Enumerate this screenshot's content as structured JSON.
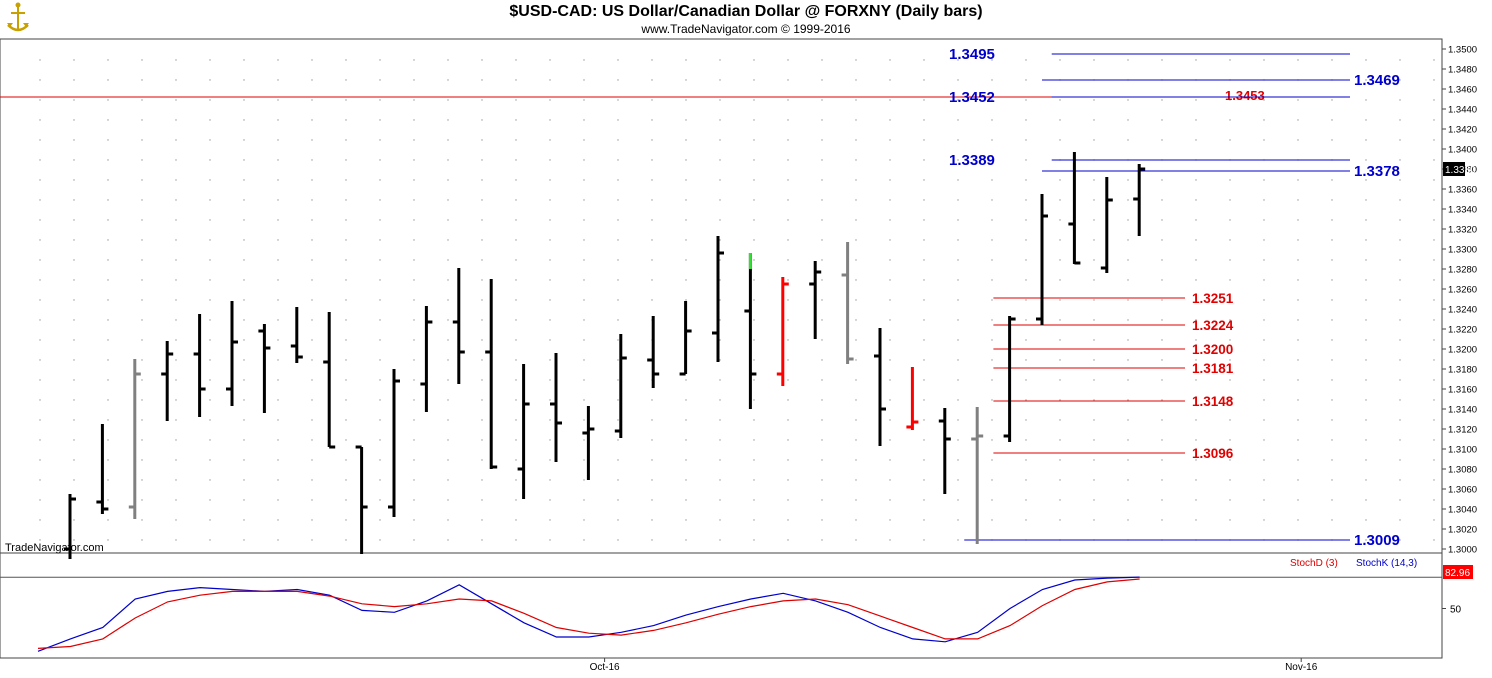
{
  "header": {
    "title": "$USD-CAD:  US Dollar/Canadian Dollar @ FORXNY  (Daily bars)",
    "subtitle": "www.TradeNavigator.com © 1999-2016",
    "watermark": "TradeNavigator.com"
  },
  "colors": {
    "up_bar": "#000000",
    "neutral_bar": "#808080",
    "down_bar": "#ff0000",
    "highlight_bar": "#33dd33",
    "support_line": "#e00000",
    "resistance_line": "#0000cc",
    "stoch_d": "#dd0000",
    "stoch_k": "#0000cc"
  },
  "chart_data": [
    {
      "type": "ohlc",
      "title": "$USD-CAD:  US Dollar/Canadian Dollar @ FORXNY  (Daily bars)",
      "ylim": [
        1.299,
        1.351
      ],
      "y_ticks": [
        "1.3500",
        "1.3480",
        "1.3460",
        "1.3440",
        "1.3420",
        "1.3400",
        "1.3380",
        "1.3360",
        "1.3340",
        "1.3320",
        "1.3300",
        "1.3280",
        "1.3260",
        "1.3240",
        "1.3220",
        "1.3200",
        "1.3180",
        "1.3160",
        "1.3140",
        "1.3120",
        "1.3100",
        "1.3080",
        "1.3060",
        "1.3040",
        "1.3020",
        "1.3000"
      ],
      "last_price": "1.3380",
      "x_labels": [
        {
          "label": "Oct-16",
          "bar": 16.5
        },
        {
          "label": "Nov-16",
          "bar": 38
        }
      ],
      "bars": [
        {
          "o": 1.3,
          "h": 1.3055,
          "l": 1.299,
          "c": 1.305,
          "color": "black"
        },
        {
          "o": 1.3047,
          "h": 1.3125,
          "l": 1.3035,
          "c": 1.304,
          "color": "black"
        },
        {
          "o": 1.3042,
          "h": 1.319,
          "l": 1.303,
          "c": 1.3175,
          "color": "gray"
        },
        {
          "o": 1.3175,
          "h": 1.3208,
          "l": 1.3128,
          "c": 1.3195,
          "color": "black"
        },
        {
          "o": 1.3195,
          "h": 1.3235,
          "l": 1.3132,
          "c": 1.316,
          "color": "black"
        },
        {
          "o": 1.316,
          "h": 1.3248,
          "l": 1.3143,
          "c": 1.3207,
          "color": "black"
        },
        {
          "o": 1.3218,
          "h": 1.3225,
          "l": 1.3136,
          "c": 1.3201,
          "color": "black"
        },
        {
          "o": 1.3203,
          "h": 1.3242,
          "l": 1.3186,
          "c": 1.3192,
          "color": "black"
        },
        {
          "o": 1.3187,
          "h": 1.3237,
          "l": 1.3102,
          "c": 1.3102,
          "color": "black"
        },
        {
          "o": 1.3102,
          "h": 1.3102,
          "l": 1.2995,
          "c": 1.3042,
          "color": "black"
        },
        {
          "o": 1.3042,
          "h": 1.318,
          "l": 1.3032,
          "c": 1.3168,
          "color": "black"
        },
        {
          "o": 1.3165,
          "h": 1.3243,
          "l": 1.3137,
          "c": 1.3227,
          "color": "black"
        },
        {
          "o": 1.3227,
          "h": 1.3281,
          "l": 1.3165,
          "c": 1.3197,
          "color": "black"
        },
        {
          "o": 1.3197,
          "h": 1.327,
          "l": 1.308,
          "c": 1.3082,
          "color": "black"
        },
        {
          "o": 1.308,
          "h": 1.3185,
          "l": 1.305,
          "c": 1.3145,
          "color": "black"
        },
        {
          "o": 1.3145,
          "h": 1.3196,
          "l": 1.3087,
          "c": 1.3126,
          "color": "black"
        },
        {
          "o": 1.3116,
          "h": 1.3143,
          "l": 1.3069,
          "c": 1.312,
          "color": "black"
        },
        {
          "o": 1.3118,
          "h": 1.3215,
          "l": 1.3111,
          "c": 1.3191,
          "color": "black"
        },
        {
          "o": 1.3189,
          "h": 1.3233,
          "l": 1.3161,
          "c": 1.3175,
          "color": "black"
        },
        {
          "o": 1.3175,
          "h": 1.3248,
          "l": 1.3175,
          "c": 1.3218,
          "color": "black"
        },
        {
          "o": 1.3216,
          "h": 1.3313,
          "l": 1.3187,
          "c": 1.3296,
          "color": "black"
        },
        {
          "o": 1.3238,
          "h": 1.3296,
          "l": 1.314,
          "c": 1.3175,
          "color": "black",
          "top_color": "green",
          "top_from": 1.328
        },
        {
          "o": 1.3175,
          "h": 1.3272,
          "l": 1.3163,
          "c": 1.3265,
          "color": "red"
        },
        {
          "o": 1.3265,
          "h": 1.3288,
          "l": 1.321,
          "c": 1.3277,
          "color": "black"
        },
        {
          "o": 1.3274,
          "h": 1.3307,
          "l": 1.3185,
          "c": 1.319,
          "color": "gray"
        },
        {
          "o": 1.3193,
          "h": 1.3221,
          "l": 1.3103,
          "c": 1.314,
          "color": "black"
        },
        {
          "o": 1.3122,
          "h": 1.3182,
          "l": 1.3119,
          "c": 1.3127,
          "color": "red"
        },
        {
          "o": 1.3128,
          "h": 1.3141,
          "l": 1.3055,
          "c": 1.311,
          "color": "black"
        },
        {
          "o": 1.311,
          "h": 1.3142,
          "l": 1.3005,
          "c": 1.3113,
          "color": "gray"
        },
        {
          "o": 1.3113,
          "h": 1.3233,
          "l": 1.3107,
          "c": 1.323,
          "color": "black"
        },
        {
          "o": 1.323,
          "h": 1.3355,
          "l": 1.3224,
          "c": 1.3333,
          "color": "black"
        },
        {
          "o": 1.3325,
          "h": 1.3397,
          "l": 1.3285,
          "c": 1.3286,
          "color": "black"
        },
        {
          "o": 1.3281,
          "h": 1.3372,
          "l": 1.3276,
          "c": 1.3349,
          "color": "black"
        },
        {
          "o": 1.335,
          "h": 1.3385,
          "l": 1.3313,
          "c": 1.338,
          "color": "black"
        }
      ],
      "support_levels": [
        {
          "label": "1.3251",
          "value": 1.3251,
          "from_bar": 28.5
        },
        {
          "label": "1.3224",
          "value": 1.3224,
          "from_bar": 28.5
        },
        {
          "label": "1.3200",
          "value": 1.32,
          "from_bar": 28.5
        },
        {
          "label": "1.3181",
          "value": 1.3181,
          "from_bar": 28.5
        },
        {
          "label": "1.3148",
          "value": 1.3148,
          "from_bar": 28.5
        },
        {
          "label": "1.3096",
          "value": 1.3096,
          "from_bar": 28.5
        }
      ],
      "support_full_line": {
        "value": 1.3452
      },
      "support_marker": {
        "label": "1.3453",
        "value": 1.3453
      },
      "resistance_levels": [
        {
          "label": "1.3495",
          "value": 1.3495,
          "side": "left",
          "from_bar": 30.3
        },
        {
          "label": "1.3469",
          "value": 1.3469,
          "side": "right",
          "from_bar": 30
        },
        {
          "label": "1.3452",
          "value": 1.3452,
          "side": "left",
          "from_bar": 30.3
        },
        {
          "label": "1.3389",
          "value": 1.3389,
          "side": "left",
          "from_bar": 30.3
        },
        {
          "label": "1.3378",
          "value": 1.3378,
          "side": "right",
          "from_bar": 30
        },
        {
          "label": "1.3009",
          "value": 1.3009,
          "side": "right",
          "from_bar": 27.6
        }
      ]
    },
    {
      "type": "line",
      "title": "",
      "legend": [
        "StochD (3)",
        "StochK (14,3)"
      ],
      "ylim": [
        0,
        100
      ],
      "y_ticks": [
        "50"
      ],
      "reference_line": 82.96,
      "last_value": "82.96",
      "series": [
        {
          "name": "StochK (14,3)",
          "color": "blue",
          "values": [
            5,
            18,
            30,
            60,
            68,
            72,
            70,
            68,
            70,
            64,
            48,
            46,
            58,
            75,
            55,
            35,
            20,
            20,
            25,
            32,
            43,
            52,
            60,
            66,
            58,
            46,
            30,
            18,
            15,
            25,
            50,
            70,
            80,
            82,
            83
          ]
        },
        {
          "name": "StochD (3)",
          "color": "red",
          "values": [
            8,
            10,
            18,
            40,
            57,
            64,
            68,
            68,
            68,
            63,
            55,
            52,
            55,
            60,
            58,
            45,
            30,
            24,
            22,
            27,
            35,
            44,
            52,
            58,
            60,
            54,
            42,
            30,
            18,
            18,
            32,
            53,
            70,
            78,
            81
          ]
        }
      ]
    }
  ]
}
